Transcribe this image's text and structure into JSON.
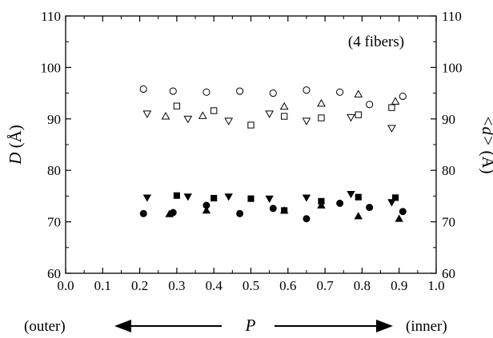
{
  "chart_data": {
    "type": "scatter",
    "title": "",
    "annotation": "(4 fibers)",
    "xlabel": "P",
    "ylabel_left": {
      "main": "D",
      "unit": " (Å)"
    },
    "ylabel_right": {
      "main": "<d>",
      "unit": " (Å)"
    },
    "xlim": [
      0.0,
      1.0
    ],
    "ylim": [
      60,
      110
    ],
    "x_ticks": [
      "0.0",
      "0.1",
      "0.2",
      "0.3",
      "0.4",
      "0.5",
      "0.6",
      "0.7",
      "0.8",
      "0.9",
      "1.0"
    ],
    "y_ticks": [
      "60",
      "70",
      "80",
      "90",
      "100",
      "110"
    ],
    "grid": false,
    "legend": "none",
    "direction": {
      "left_label": "(outer)",
      "right_label": "(inner)",
      "center_label": "P"
    },
    "series": [
      {
        "marker": "open-circle",
        "points": [
          [
            0.21,
            95.8
          ],
          [
            0.29,
            95.4
          ],
          [
            0.38,
            95.2
          ],
          [
            0.47,
            95.4
          ],
          [
            0.56,
            95.0
          ],
          [
            0.65,
            95.6
          ],
          [
            0.74,
            95.2
          ],
          [
            0.82,
            92.8
          ],
          [
            0.91,
            94.4
          ]
        ]
      },
      {
        "marker": "open-triangle-up",
        "points": [
          [
            0.27,
            90.5
          ],
          [
            0.37,
            90.6
          ],
          [
            0.59,
            92.4
          ],
          [
            0.69,
            93.0
          ],
          [
            0.79,
            94.8
          ],
          [
            0.89,
            93.4
          ]
        ]
      },
      {
        "marker": "open-square",
        "points": [
          [
            0.3,
            92.5
          ],
          [
            0.4,
            91.6
          ],
          [
            0.5,
            88.8
          ],
          [
            0.59,
            90.5
          ],
          [
            0.69,
            90.2
          ],
          [
            0.79,
            90.8
          ],
          [
            0.88,
            92.2
          ]
        ]
      },
      {
        "marker": "open-triangle-down",
        "points": [
          [
            0.22,
            91.0
          ],
          [
            0.33,
            90.0
          ],
          [
            0.44,
            89.6
          ],
          [
            0.55,
            91.0
          ],
          [
            0.65,
            89.6
          ],
          [
            0.77,
            90.3
          ],
          [
            0.88,
            88.2
          ]
        ]
      },
      {
        "marker": "filled-circle",
        "points": [
          [
            0.21,
            71.6
          ],
          [
            0.29,
            71.8
          ],
          [
            0.38,
            73.2
          ],
          [
            0.47,
            71.6
          ],
          [
            0.56,
            72.6
          ],
          [
            0.65,
            70.6
          ],
          [
            0.74,
            73.6
          ],
          [
            0.82,
            72.8
          ],
          [
            0.91,
            72.0
          ]
        ]
      },
      {
        "marker": "filled-triangle-up",
        "points": [
          [
            0.28,
            71.5
          ],
          [
            0.38,
            72.2
          ],
          [
            0.59,
            72.2
          ],
          [
            0.69,
            73.2
          ],
          [
            0.79,
            71.1
          ],
          [
            0.9,
            70.6
          ]
        ]
      },
      {
        "marker": "filled-square",
        "points": [
          [
            0.3,
            75.1
          ],
          [
            0.4,
            74.6
          ],
          [
            0.5,
            74.5
          ],
          [
            0.59,
            72.2
          ],
          [
            0.69,
            74.0
          ],
          [
            0.79,
            74.8
          ],
          [
            0.89,
            74.7
          ]
        ]
      },
      {
        "marker": "filled-triangle-down",
        "points": [
          [
            0.22,
            74.7
          ],
          [
            0.33,
            74.9
          ],
          [
            0.44,
            74.9
          ],
          [
            0.55,
            74.5
          ],
          [
            0.65,
            74.7
          ],
          [
            0.77,
            75.4
          ],
          [
            0.88,
            73.8
          ]
        ]
      }
    ]
  }
}
